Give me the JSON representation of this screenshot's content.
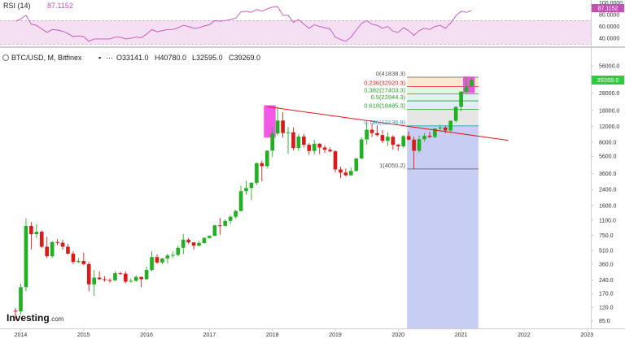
{
  "rsi": {
    "label": "RSI (14)",
    "value": "87.1152",
    "ticks": [
      "100.0000",
      "80.0000",
      "60.0000",
      "40.0000"
    ]
  },
  "header": {
    "symbol": "BTC/USD, M, Bitfinex",
    "open": "O33141.0",
    "high": "H40780.0",
    "low": "L32595.0",
    "close": "C39269.0",
    "price_badge": "39269.0"
  },
  "logo": {
    "text": "Investing",
    "suffix": ".com"
  },
  "colors": {
    "up": "#22b022",
    "down": "#d81b1b",
    "trendline": "#e3161b",
    "rsi_line": "#c64fb4",
    "rsi_band": "#f4e0f2",
    "highlight": "#ee3be0",
    "fib_volume": "#c8cdf3",
    "badge": "#2ecc40"
  },
  "chart_data": {
    "type": "candlestick",
    "title": "BTC/USD, M, Bitfinex",
    "y_scale": "log",
    "ylim": [
      70,
      90000
    ],
    "x_ticks": [
      "2014",
      "2015",
      "2016",
      "2017",
      "2018",
      "2019",
      "2020",
      "2021",
      "2022",
      "2023"
    ],
    "y_ticks": [
      "85.0",
      "120.0",
      "170.0",
      "240.0",
      "360.0",
      "510.0",
      "750.0",
      "1100.0",
      "1600.0",
      "2400.0",
      "3600.0",
      "5600.0",
      "8000.0",
      "12000.0",
      "18000.0",
      "28000.0",
      "40000.0",
      "56000.0"
    ],
    "candles": [
      {
        "o": 110,
        "h": 118,
        "l": 86,
        "c": 108
      },
      {
        "o": 108,
        "h": 220,
        "l": 100,
        "c": 200
      },
      {
        "o": 200,
        "h": 1160,
        "l": 180,
        "c": 950
      },
      {
        "o": 950,
        "h": 1050,
        "l": 520,
        "c": 770
      },
      {
        "o": 770,
        "h": 1000,
        "l": 700,
        "c": 820
      },
      {
        "o": 820,
        "h": 850,
        "l": 540,
        "c": 560
      },
      {
        "o": 560,
        "h": 720,
        "l": 420,
        "c": 440
      },
      {
        "o": 440,
        "h": 650,
        "l": 420,
        "c": 630
      },
      {
        "o": 630,
        "h": 680,
        "l": 580,
        "c": 620
      },
      {
        "o": 620,
        "h": 670,
        "l": 520,
        "c": 560
      },
      {
        "o": 560,
        "h": 600,
        "l": 460,
        "c": 470
      },
      {
        "o": 470,
        "h": 500,
        "l": 360,
        "c": 380
      },
      {
        "o": 380,
        "h": 420,
        "l": 370,
        "c": 390
      },
      {
        "o": 390,
        "h": 480,
        "l": 350,
        "c": 360
      },
      {
        "o": 360,
        "h": 380,
        "l": 180,
        "c": 215
      },
      {
        "o": 215,
        "h": 310,
        "l": 160,
        "c": 255
      },
      {
        "o": 255,
        "h": 300,
        "l": 240,
        "c": 245
      },
      {
        "o": 245,
        "h": 265,
        "l": 230,
        "c": 240
      },
      {
        "o": 240,
        "h": 250,
        "l": 225,
        "c": 238
      },
      {
        "o": 238,
        "h": 300,
        "l": 235,
        "c": 285
      },
      {
        "o": 285,
        "h": 295,
        "l": 275,
        "c": 282
      },
      {
        "o": 282,
        "h": 300,
        "l": 220,
        "c": 230
      },
      {
        "o": 230,
        "h": 250,
        "l": 225,
        "c": 235
      },
      {
        "o": 235,
        "h": 270,
        "l": 230,
        "c": 260
      },
      {
        "o": 260,
        "h": 260,
        "l": 200,
        "c": 245
      },
      {
        "o": 245,
        "h": 340,
        "l": 240,
        "c": 310
      },
      {
        "o": 310,
        "h": 500,
        "l": 300,
        "c": 430
      },
      {
        "o": 430,
        "h": 460,
        "l": 360,
        "c": 375
      },
      {
        "o": 375,
        "h": 420,
        "l": 360,
        "c": 415
      },
      {
        "o": 415,
        "h": 470,
        "l": 365,
        "c": 448
      },
      {
        "o": 448,
        "h": 500,
        "l": 420,
        "c": 455
      },
      {
        "o": 455,
        "h": 580,
        "l": 440,
        "c": 545
      },
      {
        "o": 545,
        "h": 780,
        "l": 460,
        "c": 670
      },
      {
        "o": 670,
        "h": 700,
        "l": 600,
        "c": 625
      },
      {
        "o": 625,
        "h": 630,
        "l": 520,
        "c": 575
      },
      {
        "o": 575,
        "h": 650,
        "l": 565,
        "c": 615
      },
      {
        "o": 615,
        "h": 720,
        "l": 605,
        "c": 700
      },
      {
        "o": 700,
        "h": 745,
        "l": 690,
        "c": 740
      },
      {
        "o": 740,
        "h": 980,
        "l": 730,
        "c": 965
      },
      {
        "o": 965,
        "h": 1170,
        "l": 760,
        "c": 950
      },
      {
        "o": 950,
        "h": 1120,
        "l": 940,
        "c": 1080
      },
      {
        "o": 1080,
        "h": 1250,
        "l": 1000,
        "c": 1200
      },
      {
        "o": 1200,
        "h": 1430,
        "l": 1150,
        "c": 1390
      },
      {
        "o": 1390,
        "h": 2650,
        "l": 1380,
        "c": 2300
      },
      {
        "o": 2300,
        "h": 3000,
        "l": 2100,
        "c": 2500
      },
      {
        "o": 2500,
        "h": 2900,
        "l": 1830,
        "c": 2850
      },
      {
        "o": 2850,
        "h": 4750,
        "l": 2700,
        "c": 4700
      },
      {
        "o": 4700,
        "h": 5000,
        "l": 2950,
        "c": 4350
      },
      {
        "o": 4350,
        "h": 6500,
        "l": 4100,
        "c": 6450
      },
      {
        "o": 6450,
        "h": 11500,
        "l": 5500,
        "c": 10000
      },
      {
        "o": 10000,
        "h": 19900,
        "l": 9500,
        "c": 13900
      },
      {
        "o": 13900,
        "h": 17200,
        "l": 9000,
        "c": 10100
      },
      {
        "o": 10100,
        "h": 11800,
        "l": 6000,
        "c": 10300
      },
      {
        "o": 10300,
        "h": 11700,
        "l": 6500,
        "c": 6900
      },
      {
        "o": 6900,
        "h": 9900,
        "l": 6400,
        "c": 9250
      },
      {
        "o": 9250,
        "h": 9900,
        "l": 7000,
        "c": 7500
      },
      {
        "o": 7500,
        "h": 7800,
        "l": 5800,
        "c": 6400
      },
      {
        "o": 6400,
        "h": 8500,
        "l": 5850,
        "c": 7700
      },
      {
        "o": 7700,
        "h": 7800,
        "l": 5900,
        "c": 7000
      },
      {
        "o": 7000,
        "h": 7400,
        "l": 6100,
        "c": 6600
      },
      {
        "o": 6600,
        "h": 7000,
        "l": 6200,
        "c": 6350
      },
      {
        "o": 6350,
        "h": 6500,
        "l": 3700,
        "c": 4000
      },
      {
        "o": 4000,
        "h": 4300,
        "l": 3200,
        "c": 3700
      },
      {
        "o": 3700,
        "h": 4100,
        "l": 3350,
        "c": 3450
      },
      {
        "o": 3450,
        "h": 4200,
        "l": 3400,
        "c": 3850
      },
      {
        "o": 3850,
        "h": 5350,
        "l": 3800,
        "c": 5300
      },
      {
        "o": 5300,
        "h": 9100,
        "l": 5200,
        "c": 8600
      },
      {
        "o": 8600,
        "h": 13800,
        "l": 7500,
        "c": 11000
      },
      {
        "o": 11000,
        "h": 13000,
        "l": 9100,
        "c": 10100
      },
      {
        "o": 10100,
        "h": 12300,
        "l": 9300,
        "c": 9600
      },
      {
        "o": 9600,
        "h": 10900,
        "l": 7800,
        "c": 8300
      },
      {
        "o": 8300,
        "h": 10300,
        "l": 7300,
        "c": 9200
      },
      {
        "o": 9200,
        "h": 9500,
        "l": 6600,
        "c": 7500
      },
      {
        "o": 7500,
        "h": 7700,
        "l": 6450,
        "c": 7200
      },
      {
        "o": 7200,
        "h": 9600,
        "l": 6900,
        "c": 9350
      },
      {
        "o": 9350,
        "h": 10500,
        "l": 8400,
        "c": 8550
      },
      {
        "o": 8550,
        "h": 9200,
        "l": 4050,
        "c": 6450
      },
      {
        "o": 6450,
        "h": 9450,
        "l": 6150,
        "c": 8650
      },
      {
        "o": 8650,
        "h": 10100,
        "l": 8100,
        "c": 9450
      },
      {
        "o": 9450,
        "h": 10400,
        "l": 8900,
        "c": 9150
      },
      {
        "o": 9150,
        "h": 11450,
        "l": 8900,
        "c": 11350
      },
      {
        "o": 11350,
        "h": 12500,
        "l": 10550,
        "c": 11650
      },
      {
        "o": 11650,
        "h": 12100,
        "l": 10000,
        "c": 10800
      },
      {
        "o": 10800,
        "h": 14000,
        "l": 10400,
        "c": 13800
      },
      {
        "o": 13800,
        "h": 19900,
        "l": 13200,
        "c": 19700
      },
      {
        "o": 19700,
        "h": 29300,
        "l": 17600,
        "c": 29000
      },
      {
        "o": 29000,
        "h": 41838,
        "l": 28000,
        "c": 33141
      },
      {
        "o": 33141,
        "h": 40780,
        "l": 32595,
        "c": 39269
      }
    ],
    "first_candle_date": "2013-12",
    "trendline": {
      "start": {
        "date": "2017-12",
        "value": 19800
      },
      "end": {
        "date": "2021-10",
        "value": 8400
      }
    },
    "fibonacci": {
      "levels": [
        {
          "ratio": 0,
          "value": 41838.3,
          "label": "0(41838.3)",
          "color": "#555555",
          "fill": "#fbe4e4"
        },
        {
          "ratio": 0.236,
          "value": 32920.3,
          "label": "0.236(32920.3)",
          "color": "#e02020",
          "fill": "#fbe8d0"
        },
        {
          "ratio": 0.382,
          "value": 27403.3,
          "label": "0.382(27403.3)",
          "color": "#2aa02a",
          "fill": "#e2f5df"
        },
        {
          "ratio": 0.5,
          "value": 22944.3,
          "label": "0.5(22944.3)",
          "color": "#2aa02a",
          "fill": "#dff2ee"
        },
        {
          "ratio": 0.618,
          "value": 18485.3,
          "label": "0.618(18485.3)",
          "color": "#2aa02a",
          "fill": "#dfeef7"
        },
        {
          "ratio": 0.786,
          "value": 12136.9,
          "label": "0.786(12136.9)",
          "color": "#1f9fc8",
          "fill": "#e6e6e6"
        },
        {
          "ratio": 1,
          "value": 4050.2,
          "label": "1(4050.2)",
          "color": "#555555",
          "fill": "#c8cdf3"
        }
      ],
      "start_date": "2020-03",
      "end_date": "2021-04"
    },
    "highlights": [
      {
        "start": "2017-12",
        "end": "2018-01",
        "low": 9000,
        "high": 20500
      },
      {
        "start": "2021-02",
        "end": "2021-03",
        "low": 28000,
        "high": 42500
      }
    ],
    "rsi": {
      "ylim": [
        25,
        105
      ],
      "band": [
        30,
        70
      ],
      "values": [
        69,
        73,
        79,
        64,
        62,
        56,
        50,
        55,
        54,
        52,
        48,
        43,
        44,
        43,
        35,
        39,
        39,
        39,
        39,
        42,
        42,
        39,
        40,
        42,
        41,
        47,
        55,
        51,
        53,
        55,
        55,
        58,
        62,
        60,
        57,
        58,
        61,
        63,
        70,
        69,
        70,
        72,
        74,
        85,
        86,
        84,
        89,
        86,
        90,
        93,
        94,
        79,
        79,
        67,
        72,
        64,
        57,
        63,
        60,
        58,
        56,
        42,
        38,
        35,
        42,
        54,
        65,
        70,
        64,
        62,
        57,
        60,
        52,
        50,
        58,
        53,
        45,
        53,
        57,
        55,
        60,
        62,
        57,
        66,
        78,
        86,
        84,
        87.1
      ]
    }
  }
}
